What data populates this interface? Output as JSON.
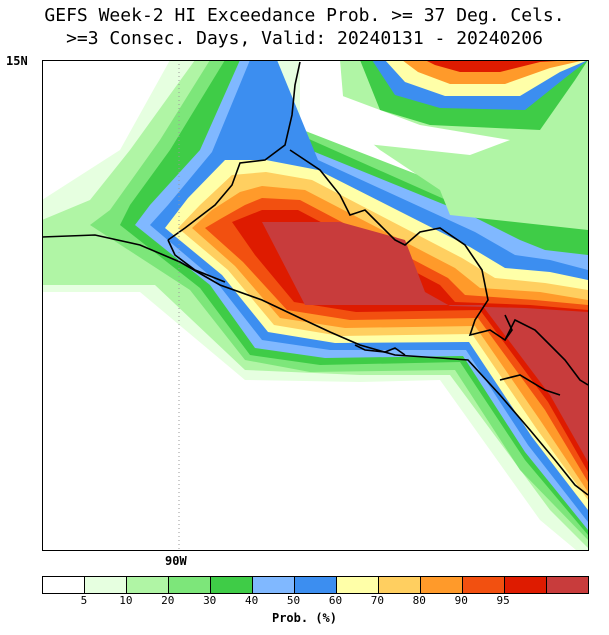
{
  "title_line1": "GEFS Week-2 HI Exceedance Prob. >= 37 Deg. Cels.",
  "title_line2": ">=3 Consec. Days, Valid: 20240131 - 20240206",
  "lat_label": "15N",
  "lon_label": "90W",
  "colorbar": {
    "title": "Prob. (%)",
    "ticks": [
      "5",
      "10",
      "20",
      "30",
      "40",
      "50",
      "60",
      "70",
      "80",
      "90",
      "95"
    ],
    "colors": [
      "#ffffff",
      "#e6ffe0",
      "#b0f5a5",
      "#7de67a",
      "#3fcc47",
      "#80b8ff",
      "#3c8ef0",
      "#ffffa8",
      "#ffcf60",
      "#ff9a2a",
      "#f25010",
      "#de1b00",
      "#c83c3c"
    ]
  }
}
